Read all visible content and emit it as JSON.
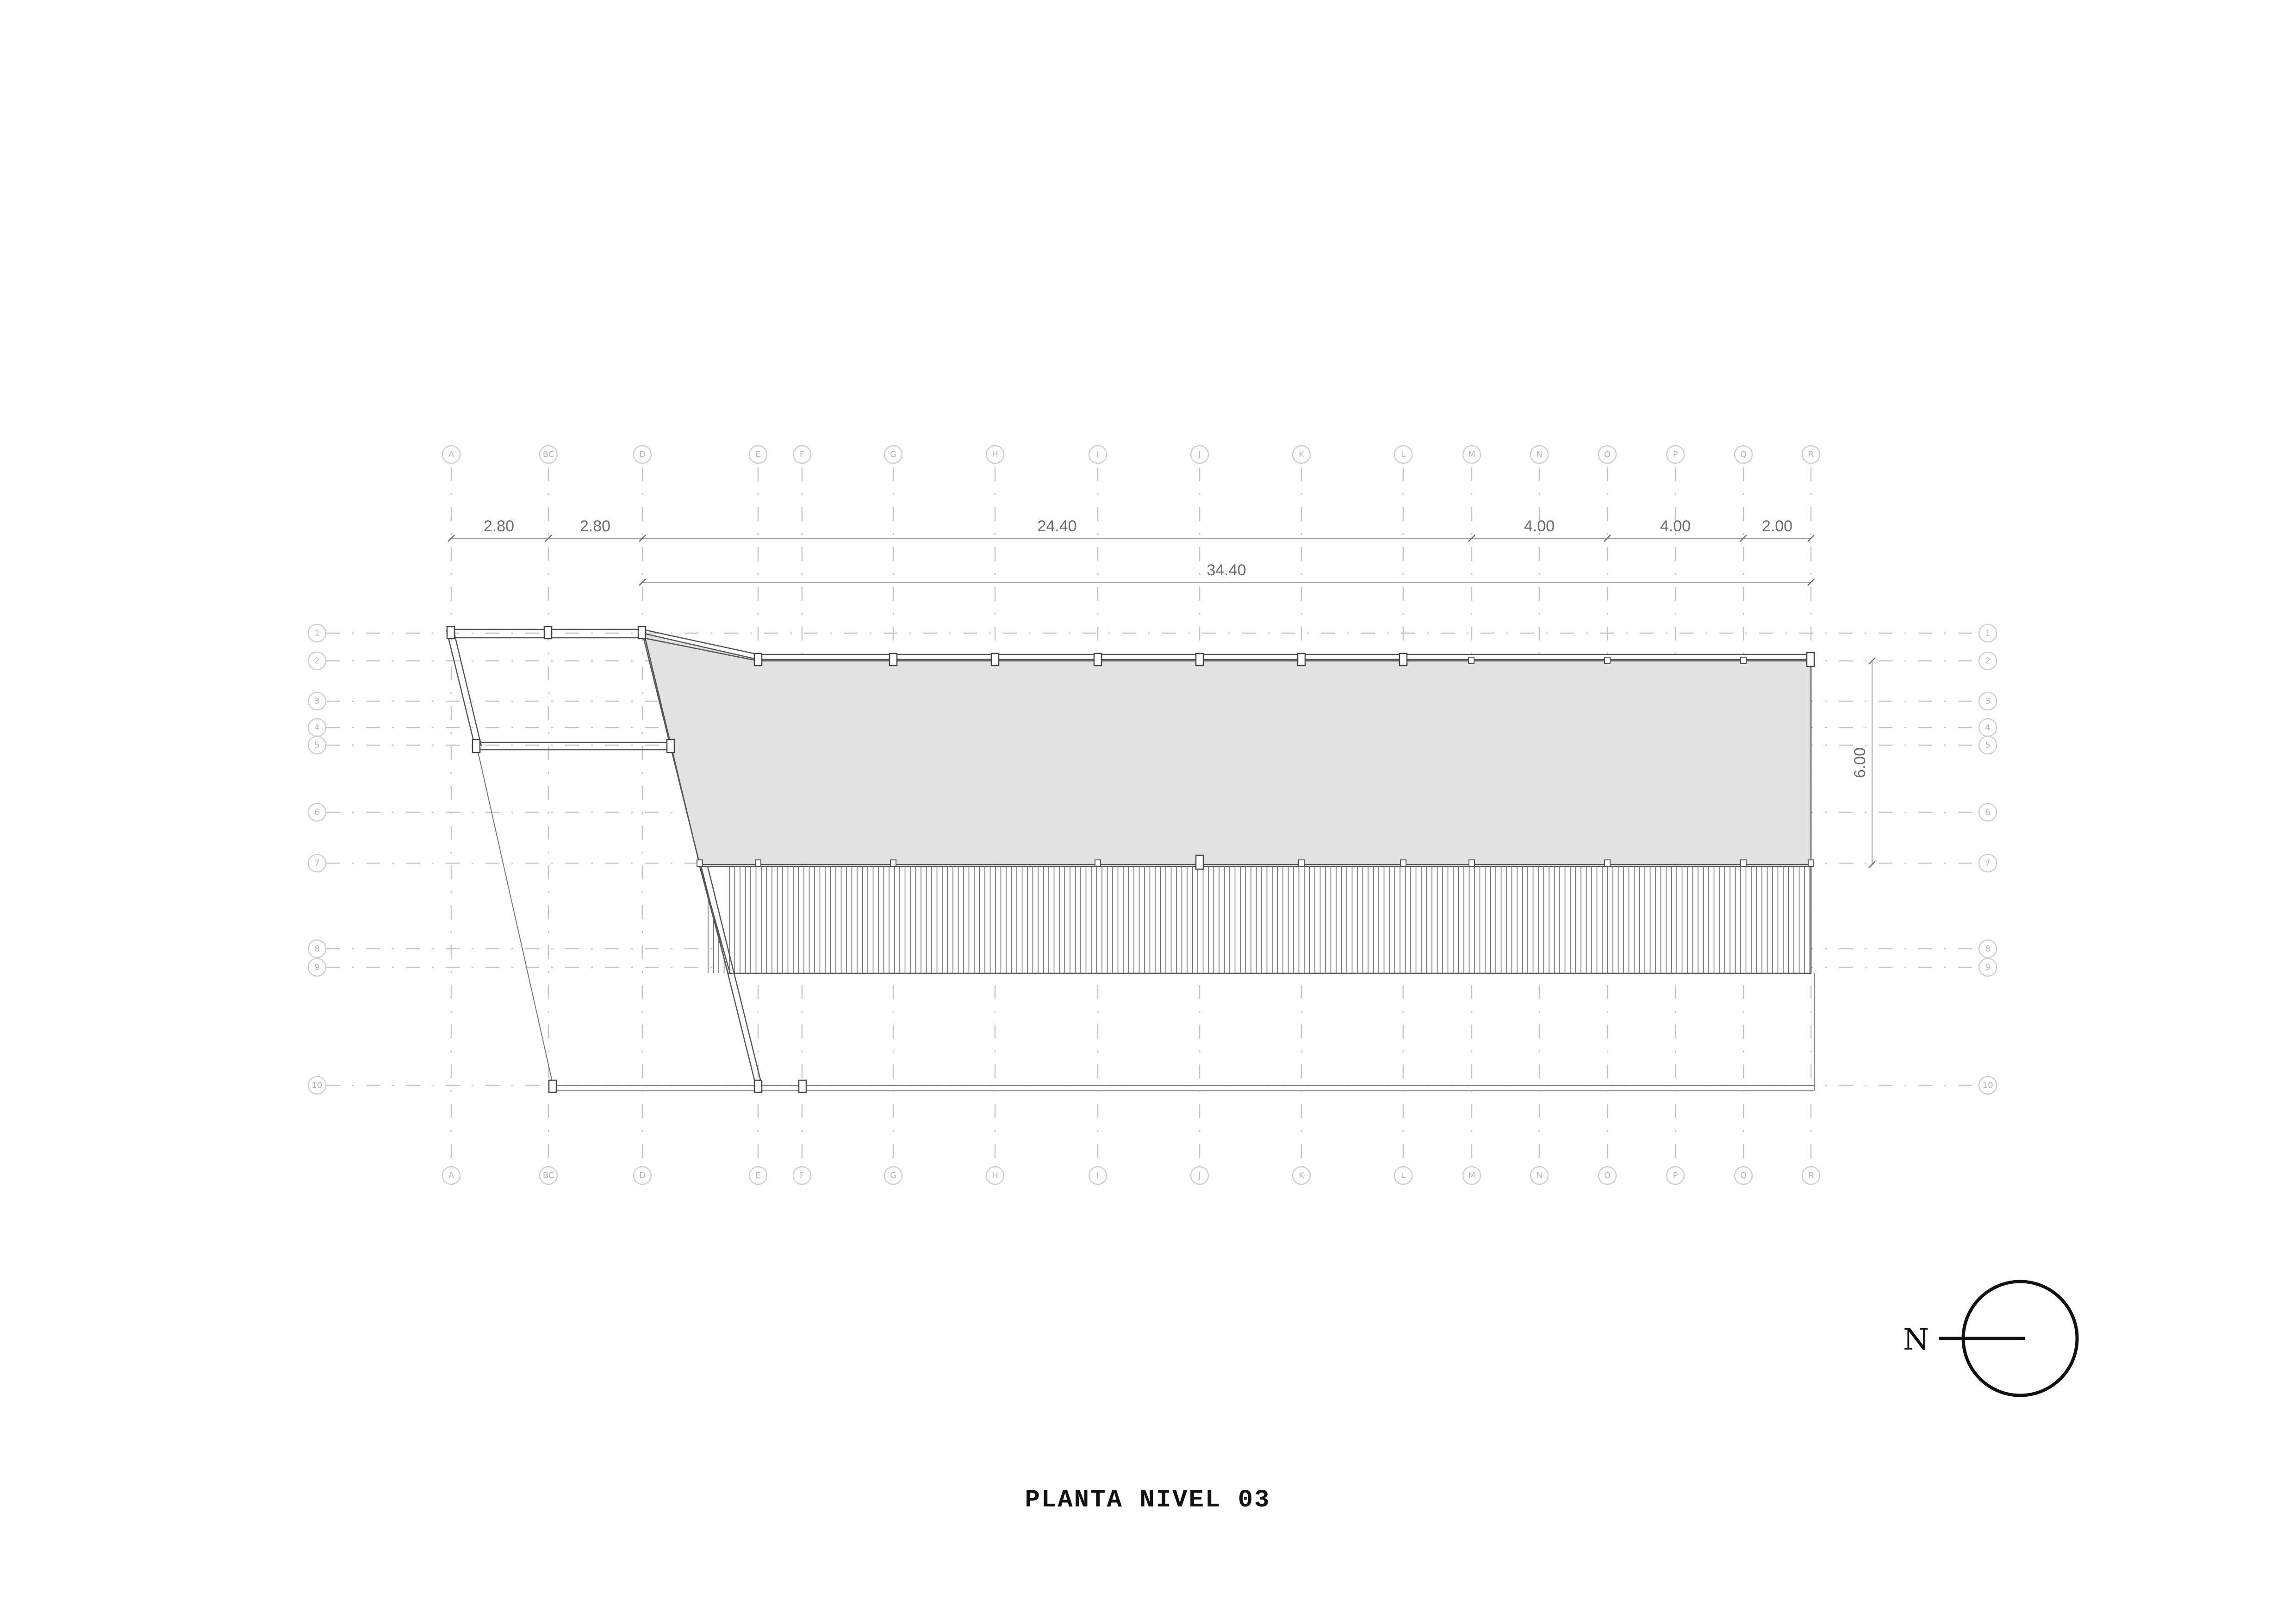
{
  "title": "PLANTA NIVEL 03",
  "north_label": "N",
  "grid_axes": {
    "columns": [
      "A",
      "BC",
      "D",
      "E",
      "F",
      "G",
      "H",
      "I",
      "J",
      "K",
      "L",
      "M",
      "N",
      "O",
      "P",
      "Q",
      "R"
    ],
    "rows": [
      "1",
      "2",
      "3",
      "4",
      "5",
      "6",
      "7",
      "8",
      "9",
      "10"
    ]
  },
  "dimensions": {
    "top_chain": [
      "2.80",
      "2.80",
      "24.40",
      "4.00",
      "4.00",
      "2.00"
    ],
    "overall": "34.40",
    "side": "6.00"
  }
}
